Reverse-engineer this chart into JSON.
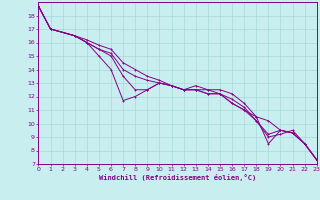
{
  "xlabel": "Windchill (Refroidissement éolien,°C)",
  "bg_color": "#c8eef0",
  "line_color": "#880088",
  "grid_color": "#a8d8d8",
  "axis_color": "#880088",
  "tick_color": "#880088",
  "xlim": [
    0,
    23
  ],
  "ylim": [
    7,
    19
  ],
  "yticks": [
    7,
    8,
    9,
    10,
    11,
    12,
    13,
    14,
    15,
    16,
    17,
    18
  ],
  "xticks": [
    0,
    1,
    2,
    3,
    4,
    5,
    6,
    7,
    8,
    9,
    10,
    11,
    12,
    13,
    14,
    15,
    16,
    17,
    18,
    19,
    20,
    21,
    22,
    23
  ],
  "series1": {
    "x": [
      0,
      1,
      3,
      4,
      5,
      6,
      7,
      8,
      9,
      10,
      11,
      12,
      13,
      14,
      15,
      16,
      17,
      18,
      19,
      20,
      21,
      22,
      23
    ],
    "y": [
      18.7,
      17.0,
      16.5,
      16.0,
      15.0,
      14.0,
      11.7,
      12.0,
      12.5,
      13.0,
      12.8,
      12.5,
      12.8,
      12.5,
      12.5,
      12.2,
      11.5,
      10.5,
      8.5,
      9.5,
      9.3,
      8.5,
      7.3
    ]
  },
  "series2": {
    "x": [
      0,
      1,
      3,
      4,
      5,
      6,
      7,
      8,
      9,
      10,
      11,
      12,
      13,
      14,
      15,
      16,
      17,
      18,
      19,
      20,
      21,
      22,
      23
    ],
    "y": [
      18.7,
      17.0,
      16.5,
      16.0,
      15.5,
      15.0,
      13.5,
      12.5,
      12.5,
      13.0,
      12.8,
      12.5,
      12.5,
      12.2,
      12.2,
      11.8,
      11.2,
      10.2,
      9.0,
      9.2,
      9.5,
      8.5,
      7.3
    ]
  },
  "series3": {
    "x": [
      0,
      1,
      3,
      4,
      5,
      6,
      7,
      8,
      9,
      10,
      11,
      12,
      13,
      14,
      15,
      16,
      17,
      18,
      19,
      20,
      21,
      22,
      23
    ],
    "y": [
      18.7,
      17.0,
      16.5,
      16.0,
      15.5,
      15.2,
      14.0,
      13.5,
      13.2,
      13.0,
      12.8,
      12.5,
      12.5,
      12.5,
      12.2,
      11.5,
      11.0,
      10.2,
      9.2,
      9.5,
      9.3,
      8.5,
      7.3
    ]
  },
  "series4": {
    "x": [
      0,
      1,
      3,
      4,
      5,
      6,
      7,
      8,
      9,
      10,
      11,
      12,
      13,
      14,
      15,
      16,
      17,
      18,
      19,
      20,
      21,
      22,
      23
    ],
    "y": [
      18.7,
      17.0,
      16.5,
      16.2,
      15.8,
      15.5,
      14.5,
      14.0,
      13.5,
      13.2,
      12.8,
      12.5,
      12.5,
      12.2,
      12.2,
      11.5,
      11.0,
      10.5,
      10.2,
      9.5,
      9.3,
      8.5,
      7.3
    ]
  }
}
